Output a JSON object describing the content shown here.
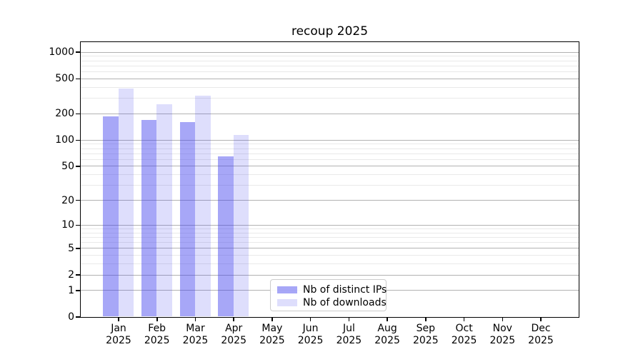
{
  "chart_data": {
    "type": "bar",
    "title": "recoup 2025",
    "x_categories": [
      {
        "month": "Jan",
        "year": "2025"
      },
      {
        "month": "Feb",
        "year": "2025"
      },
      {
        "month": "Mar",
        "year": "2025"
      },
      {
        "month": "Apr",
        "year": "2025"
      },
      {
        "month": "May",
        "year": "2025"
      },
      {
        "month": "Jun",
        "year": "2025"
      },
      {
        "month": "Jul",
        "year": "2025"
      },
      {
        "month": "Aug",
        "year": "2025"
      },
      {
        "month": "Sep",
        "year": "2025"
      },
      {
        "month": "Oct",
        "year": "2025"
      },
      {
        "month": "Nov",
        "year": "2025"
      },
      {
        "month": "Dec",
        "year": "2025"
      }
    ],
    "series": [
      {
        "name": "Nb of distinct IPs",
        "base_color": "#3c3cee",
        "alpha": 0.45,
        "values": [
          185,
          168,
          160,
          65,
          null,
          null,
          null,
          null,
          null,
          null,
          null,
          null
        ]
      },
      {
        "name": "Nb of downloads",
        "base_color": "#3c3cee",
        "alpha": 0.17,
        "values": [
          385,
          253,
          317,
          113,
          null,
          null,
          null,
          null,
          null,
          null,
          null,
          null
        ]
      }
    ],
    "yscale": "log1p",
    "ylim": [
      0,
      1300
    ],
    "yticks_major": [
      0,
      1,
      2,
      5,
      10,
      20,
      50,
      100,
      200,
      500,
      1000
    ],
    "yticks_minor": [
      3,
      4,
      6,
      7,
      8,
      9,
      30,
      40,
      60,
      70,
      80,
      90,
      300,
      400,
      600,
      700,
      800,
      900
    ],
    "grid": {
      "major_color": "#b2b2b2",
      "minor_color": "#e9e9e9"
    },
    "legend_position": "lower-center-left"
  }
}
